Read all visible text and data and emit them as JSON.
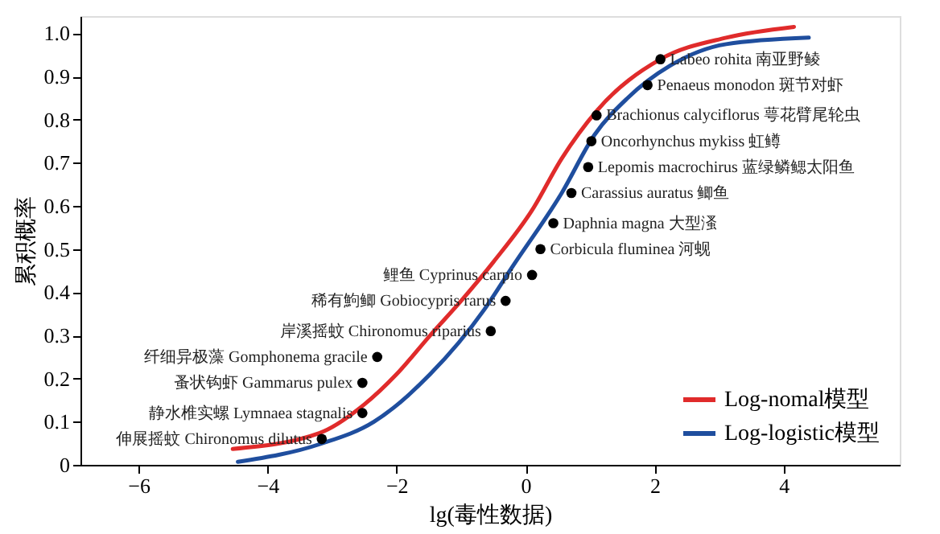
{
  "chart_data": {
    "type": "line",
    "xlabel": "lg(毒性数据)",
    "ylabel": "累积概率",
    "xlim": [
      -6.9,
      5.8
    ],
    "ylim": [
      0,
      1.04
    ],
    "xticks": [
      {
        "value": -6,
        "label": "−6"
      },
      {
        "value": -4,
        "label": "−4"
      },
      {
        "value": -2,
        "label": "−2"
      },
      0,
      2,
      4
    ],
    "yticks": [
      0,
      0.1,
      0.2,
      0.3,
      0.4,
      0.5,
      0.6,
      0.7,
      0.8,
      0.9,
      {
        "value": 1.0,
        "label": "1.0"
      }
    ],
    "grid": false,
    "legend": "bottom right",
    "line_style": "solid",
    "series": [
      {
        "name": "Log-nomal模型",
        "color": "#e02b2b",
        "marker": "none",
        "x": [
          -4.54,
          -3.19,
          -2.5,
          -2.0,
          -1.48,
          -1.0,
          -0.5,
          0.1,
          0.56,
          1.1,
          2.09,
          3.11,
          4.16
        ],
        "values": [
          0.037,
          0.074,
          0.14,
          0.21,
          0.3,
          0.38,
          0.47,
          0.59,
          0.71,
          0.82,
          0.94,
          0.99,
          1.015
        ]
      },
      {
        "name": "Log-logistic模型",
        "color": "#1f4e9e",
        "marker": "none",
        "x": [
          -4.46,
          -3.19,
          -2.35,
          -1.48,
          -0.64,
          -0.2,
          0.56,
          1.07,
          1.58,
          2.24,
          3.11,
          4.39
        ],
        "values": [
          0.007,
          0.048,
          0.1,
          0.21,
          0.36,
          0.46,
          0.63,
          0.765,
          0.85,
          0.925,
          0.975,
          0.99
        ]
      },
      {
        "type": "scatter",
        "color": "#000000",
        "marker": "circle",
        "x": [
          -3.16,
          -2.53,
          -2.53,
          -2.3,
          -0.54,
          -0.31,
          0.1,
          0.23,
          0.43,
          0.71,
          0.97,
          1.02,
          1.1,
          1.89,
          2.09
        ],
        "values": [
          0.06,
          0.12,
          0.19,
          0.25,
          0.31,
          0.38,
          0.44,
          0.5,
          0.56,
          0.63,
          0.69,
          0.75,
          0.81,
          0.88,
          0.94
        ]
      }
    ],
    "annotations": [
      {
        "text": "伸展摇蚊 Chironomus dilutus",
        "x": -3.16,
        "y": 0.06
      },
      {
        "text": "静水椎实螺 Lymnaea stagnalis",
        "x": -2.53,
        "y": 0.12
      },
      {
        "text": "蚤状钩虾 Gammarus pulex",
        "x": -2.53,
        "y": 0.19
      },
      {
        "text": "纤细异极藻 Gomphonema gracile",
        "x": -2.3,
        "y": 0.25
      },
      {
        "text": "岸溪摇蚊 Chironomus riparius",
        "x": -0.54,
        "y": 0.31
      },
      {
        "text": "稀有鮈鲫 Gobiocypris rarus",
        "x": -0.31,
        "y": 0.38
      },
      {
        "text": "鲤鱼 Cyprinus carpio",
        "x": 0.1,
        "y": 0.44
      },
      {
        "text": "Corbicula fluminea 河蚬",
        "x": 0.23,
        "y": 0.5
      },
      {
        "text": "Daphnia magna 大型溞",
        "x": 0.43,
        "y": 0.56
      },
      {
        "text": "Carassius auratus 鲫鱼",
        "x": 0.71,
        "y": 0.63
      },
      {
        "text": "Lepomis macrochirus 蓝绿鳞鳃太阳鱼",
        "x": 0.97,
        "y": 0.69
      },
      {
        "text": "Oncorhynchus mykiss 虹鳟",
        "x": 1.02,
        "y": 0.75
      },
      {
        "text": "Brachionus calyciflorus 萼花臂尾轮虫",
        "x": 1.1,
        "y": 0.81
      },
      {
        "text": "Penaeus monodon 斑节对虾",
        "x": 1.89,
        "y": 0.88
      },
      {
        "text": "Labeo rohita 南亚野鲮",
        "x": 2.09,
        "y": 0.94
      }
    ]
  }
}
